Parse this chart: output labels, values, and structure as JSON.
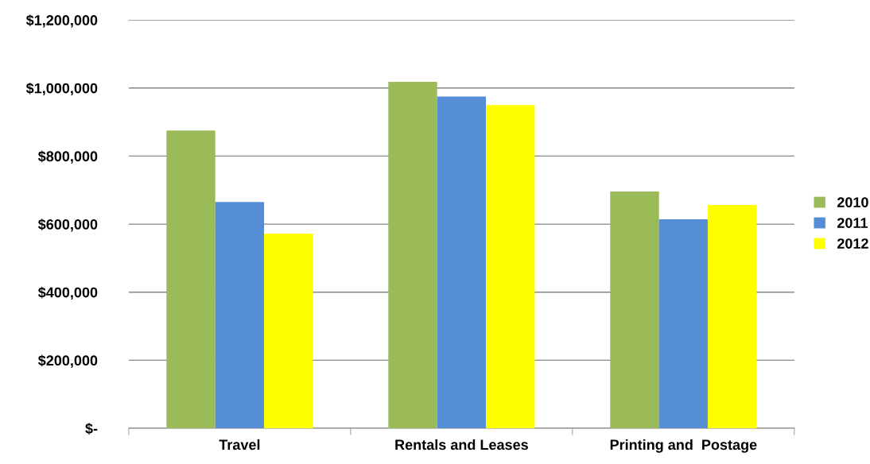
{
  "chart_data": {
    "type": "bar",
    "categories": [
      "Travel",
      "Rentals and Leases",
      "Printing and  Postage"
    ],
    "series": [
      {
        "name": "2010",
        "color": "#9bbb59",
        "values": [
          875000,
          1018000,
          696000
        ]
      },
      {
        "name": "2011",
        "color": "#558ed5",
        "values": [
          665000,
          975000,
          614000
        ]
      },
      {
        "name": "2012",
        "color": "#ffff00",
        "values": [
          572000,
          950000,
          656000
        ]
      }
    ],
    "ylim": [
      0,
      1200000
    ],
    "yticks": [
      {
        "value": 0,
        "label": "$-"
      },
      {
        "value": 200000,
        "label": "$200,000"
      },
      {
        "value": 400000,
        "label": "$400,000"
      },
      {
        "value": 600000,
        "label": "$600,000"
      },
      {
        "value": 800000,
        "label": "$800,000"
      },
      {
        "value": 1000000,
        "label": "$1,000,000"
      },
      {
        "value": 1200000,
        "label": "$1,200,000"
      }
    ],
    "grid": "y",
    "legend": "right"
  }
}
